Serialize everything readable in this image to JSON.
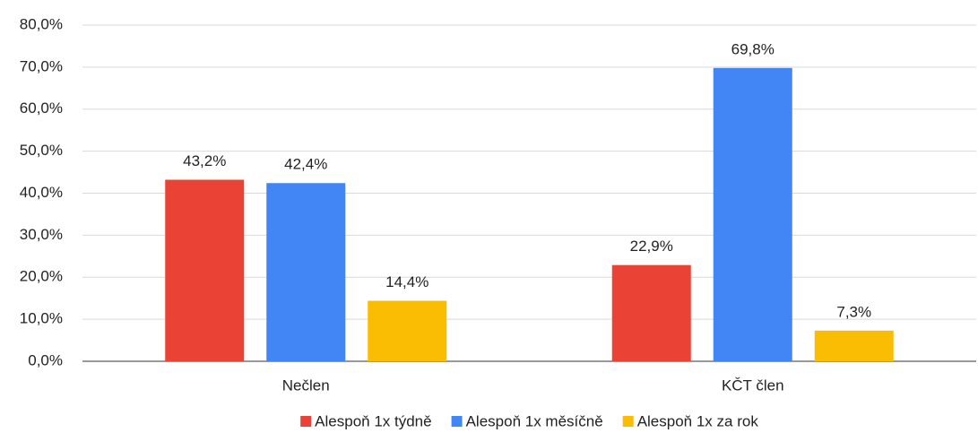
{
  "chart_data": {
    "type": "bar",
    "categories": [
      "Nečlen",
      "KČT člen"
    ],
    "series": [
      {
        "name": "Alespoň 1x týdně",
        "color": "#ea4335",
        "values": [
          43.2,
          22.9
        ],
        "value_labels": [
          "43,2%",
          "22,9%"
        ]
      },
      {
        "name": "Alespoň 1x měsíčně",
        "color": "#4285f4",
        "values": [
          42.4,
          69.8
        ],
        "value_labels": [
          "42,4%",
          "69,8%"
        ]
      },
      {
        "name": "Alespoň 1x za rok",
        "color": "#fbbc04",
        "values": [
          14.4,
          7.3
        ],
        "value_labels": [
          "14,4%",
          "7,3%"
        ]
      }
    ],
    "ylim": [
      0,
      80
    ],
    "yticks": [
      {
        "value": 0,
        "label": "0,0%"
      },
      {
        "value": 10,
        "label": "10,0%"
      },
      {
        "value": 20,
        "label": "20,0%"
      },
      {
        "value": 30,
        "label": "30,0%"
      },
      {
        "value": 40,
        "label": "40,0%"
      },
      {
        "value": 50,
        "label": "50,0%"
      },
      {
        "value": 60,
        "label": "60,0%"
      },
      {
        "value": 70,
        "label": "70,0%"
      },
      {
        "value": 80,
        "label": "80,0%"
      }
    ],
    "grid": true,
    "legend": "bottom"
  }
}
